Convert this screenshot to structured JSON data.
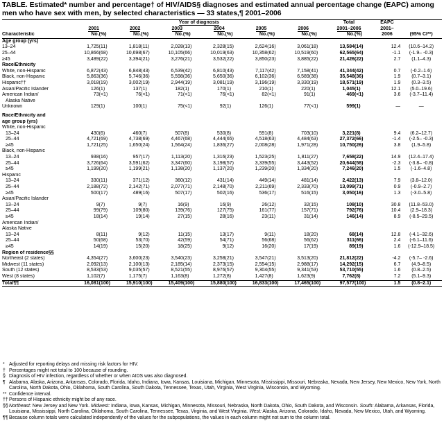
{
  "title": "TABLE. Estimated* number and percentage† of HIV/AIDS§ diagnoses and estimated annual percentage change (EAPC) among men who have sex with men, by selected characteristics — 33 states,¶ 2001–2006",
  "header": {
    "year_of_diagnosis": "Year of diagnosis",
    "total": "Total",
    "eapc": "EAPC",
    "years": [
      "2001",
      "2002",
      "2003",
      "2004",
      "2005",
      "2006"
    ],
    "total_range": "2001–2006",
    "eapc_range": "2001–",
    "characteristic": "Characteristic",
    "no": "No.",
    "pct": "(%)",
    "eapc_year": "2006",
    "ci": "(95% CI**)"
  },
  "rows": [
    {
      "type": "section",
      "label": "Age group (yrs)"
    },
    {
      "type": "data",
      "label": "13–24",
      "indent": 0,
      "cells": [
        "1,725",
        "(11)",
        "1,818",
        "(11)",
        "2,028",
        "(13)",
        "2,328",
        "(15)",
        "2,624",
        "(16)",
        "3,061",
        "(18)",
        "13,584",
        "(14)",
        "12.4",
        "(10.6–14.2)"
      ]
    },
    {
      "type": "data",
      "label": "25–44",
      "indent": 0,
      "cells": [
        "10,866",
        "(68)",
        "10,698",
        "(67)",
        "10,105",
        "(66)",
        "10,019",
        "(63)",
        "10,358",
        "(62)",
        "10,519",
        "(60)",
        "62,565",
        "(64)",
        "-1.1",
        "(-1.9– -0.3)"
      ]
    },
    {
      "type": "data",
      "label": "≥45",
      "indent": 0,
      "cells": [
        "3,489",
        "(22)",
        "3,394",
        "(21)",
        "3,276",
        "(21)",
        "3,532",
        "(22)",
        "3,850",
        "(23)",
        "3,885",
        "(22)",
        "21,426",
        "(22)",
        "2.7",
        "(1.1–4.3)"
      ]
    },
    {
      "type": "section",
      "label": "Race/Ethnicity"
    },
    {
      "type": "data",
      "label": "White, non-Hispanic",
      "indent": 0,
      "cells": [
        "6,872",
        "(43)",
        "6,848",
        "(43)",
        "6,539",
        "(42)",
        "6,810",
        "(43)",
        "7,117",
        "(42)",
        "7,158",
        "(41)",
        "41,344",
        "(42)",
        "0.7",
        "(-0.2–1.6)"
      ]
    },
    {
      "type": "data",
      "label": "Black, non-Hispanic",
      "indent": 0,
      "cells": [
        "5,863",
        "(36)",
        "5,746",
        "(36)",
        "5,598",
        "(36)",
        "5,650",
        "(36)",
        "6,102",
        "(36)",
        "6,589",
        "(38)",
        "35,548",
        "(36)",
        "1.9",
        "(0.7–3.1)"
      ]
    },
    {
      "type": "data",
      "label": "Hispanic††",
      "indent": 0,
      "cells": [
        "3,018",
        "(19)",
        "3,002",
        "(19)",
        "2,944",
        "(19)",
        "3,081",
        "(19)",
        "3,196",
        "(19)",
        "3,330",
        "(19)",
        "18,571",
        "(19)",
        "1.9",
        "(0.3–3.5)"
      ]
    },
    {
      "type": "data",
      "label": "Asian/Pacific Islander",
      "indent": 0,
      "cells": [
        "126",
        "(1)",
        "137",
        "(1)",
        "182",
        "(1)",
        "170",
        "(1)",
        "210",
        "(1)",
        "220",
        "(1)",
        "1,045",
        "(1)",
        "12.1",
        "(5.0–19.6)"
      ]
    },
    {
      "type": "data",
      "label": "American Indian/",
      "indent": 0,
      "cells": [
        "73",
        "(<1)",
        "76",
        "(<1)",
        "71",
        "(<1)",
        "76",
        "(<1)",
        "82",
        "(<1)",
        "91",
        "(1)",
        "469",
        "(<1)",
        "3.6",
        "(-3.7–11.4)"
      ]
    },
    {
      "type": "label",
      "label": "Alaska Native",
      "indent": 1
    },
    {
      "type": "data",
      "label": "Unknown",
      "indent": 0,
      "cells": [
        "129",
        "(1)",
        "100",
        "(1)",
        "75",
        "(<1)",
        "92",
        "(1)",
        "126",
        "(1)",
        "77",
        "(<1)",
        "599",
        "(1)",
        "—",
        "—"
      ]
    },
    {
      "type": "spacer"
    },
    {
      "type": "section",
      "label": "Race/Ethnicity and"
    },
    {
      "type": "section",
      "label": "age group (yrs)"
    },
    {
      "type": "label",
      "label": "White, non-Hispanic",
      "indent": 0
    },
    {
      "type": "data",
      "label": "13–24",
      "indent": 1,
      "cells": [
        "430",
        "(6)",
        "460",
        "(7)",
        "507",
        "(8)",
        "530",
        "(8)",
        "591",
        "(8)",
        "703",
        "(10)",
        "3,221",
        "(8)",
        "9.4",
        "(6.2–12.7)"
      ]
    },
    {
      "type": "data",
      "label": "25–44",
      "indent": 1,
      "cells": [
        "4,721",
        "(69)",
        "4,738",
        "(69)",
        "4,467",
        "(68)",
        "4,444",
        "(65)",
        "4,518",
        "(63)",
        "4,484",
        "(63)",
        "27,372",
        "(66)",
        "-1.4",
        "(-2.5– -0.3)"
      ]
    },
    {
      "type": "data",
      "label": "≥45",
      "indent": 1,
      "cells": [
        "1,721",
        "(25)",
        "1,650",
        "(24)",
        "1,564",
        "(24)",
        "1,836",
        "(27)",
        "2,008",
        "(28)",
        "1,971",
        "(28)",
        "10,750",
        "(26)",
        "3.8",
        "(1.9–5.8)"
      ]
    },
    {
      "type": "label",
      "label": "Black, non-Hispanic",
      "indent": 0
    },
    {
      "type": "data",
      "label": "13–24",
      "indent": 1,
      "cells": [
        "938",
        "(16)",
        "957",
        "(17)",
        "1,113",
        "(20)",
        "1,316",
        "(23)",
        "1,523",
        "(25)",
        "1,811",
        "(27)",
        "7,658",
        "(22)",
        "14.9",
        "(12.4–17.4)"
      ]
    },
    {
      "type": "data",
      "label": "25–44",
      "indent": 1,
      "cells": [
        "3,726",
        "(64)",
        "3,591",
        "(62)",
        "3,347",
        "(60)",
        "3,198",
        "(57)",
        "3,339",
        "(55)",
        "3,443",
        "(52)",
        "20,644",
        "(58)",
        "-2.3",
        "(-3.8– -0.8)"
      ]
    },
    {
      "type": "data",
      "label": "≥45",
      "indent": 1,
      "cells": [
        "1,199",
        "(20)",
        "1,199",
        "(21)",
        "1,138",
        "(20)",
        "1,137",
        "(20)",
        "1,239",
        "(20)",
        "1,334",
        "(20)",
        "7,246",
        "(20)",
        "1.5",
        "(-1.6–4.8)"
      ]
    },
    {
      "type": "label",
      "label": "Hispanic",
      "indent": 0
    },
    {
      "type": "data",
      "label": "13–24",
      "indent": 1,
      "cells": [
        "330",
        "(11)",
        "371",
        "(12)",
        "360",
        "(12)",
        "431",
        "(14)",
        "449",
        "(14)",
        "481",
        "(14)",
        "2,422",
        "(13)",
        "7.9",
        "(3.8–12.0)"
      ]
    },
    {
      "type": "data",
      "label": "25–44",
      "indent": 1,
      "cells": [
        "2,188",
        "(72)",
        "2,142",
        "(71)",
        "2,077",
        "(71)",
        "2,148",
        "(70)",
        "2,211",
        "(69)",
        "2,333",
        "(70)",
        "13,099",
        "(71)",
        "0.9",
        "(-0.9–2.7)"
      ]
    },
    {
      "type": "data",
      "label": "≥45",
      "indent": 1,
      "cells": [
        "500",
        "(17)",
        "489",
        "(16)",
        "507",
        "(17)",
        "502",
        "(16)",
        "536",
        "(17)",
        "516",
        "(15)",
        "3,050",
        "(16)",
        "1.3",
        "(-3.0–5.8)"
      ]
    },
    {
      "type": "label",
      "label": "Asian/Pacific Islander",
      "indent": 0
    },
    {
      "type": "data",
      "label": "13–24",
      "indent": 1,
      "cells": [
        "9",
        "(7)",
        "9",
        "(7)",
        "16",
        "(9)",
        "16",
        "(9)",
        "26",
        "(12)",
        "32",
        "(15)",
        "108",
        "(10)",
        "30.8",
        "(11.8–53.0)"
      ]
    },
    {
      "type": "data",
      "label": "25–44",
      "indent": 1,
      "cells": [
        "99",
        "(79)",
        "109",
        "(80)",
        "139",
        "(76)",
        "127",
        "(75)",
        "161",
        "(77)",
        "157",
        "(71)",
        "792",
        "(76)",
        "10.4",
        "(2.9–18.3)"
      ]
    },
    {
      "type": "data",
      "label": "≥45",
      "indent": 1,
      "cells": [
        "18",
        "(14)",
        "19",
        "(14)",
        "27",
        "(15)",
        "28",
        "(16)",
        "23",
        "(11)",
        "31",
        "(14)",
        "146",
        "(14)",
        "8.9",
        "(-8.5–29.5)"
      ]
    },
    {
      "type": "label",
      "label": "American Indian/",
      "indent": 0
    },
    {
      "type": "label",
      "label": "Alaska Native",
      "indent": 0
    },
    {
      "type": "data",
      "label": "13–24",
      "indent": 1,
      "cells": [
        "8",
        "(11)",
        "9",
        "(12)",
        "11",
        "(15)",
        "13",
        "(17)",
        "9",
        "(11)",
        "18",
        "(20)",
        "68",
        "(14)",
        "12.8",
        "(-4.1–32.6)"
      ]
    },
    {
      "type": "data",
      "label": "25–44",
      "indent": 1,
      "cells": [
        "50",
        "(68)",
        "53",
        "(70)",
        "42",
        "(59)",
        "54",
        "(71)",
        "56",
        "(68)",
        "56",
        "(62)",
        "311",
        "(66)",
        "2.4",
        "(-6.1–11.6)"
      ]
    },
    {
      "type": "data",
      "label": "≥45",
      "indent": 1,
      "cells": [
        "14",
        "(19)",
        "15",
        "(20)",
        "18",
        "(25)",
        "9",
        "(12)",
        "16",
        "(20)",
        "17",
        "(19)",
        "89",
        "(19)",
        "1.6",
        "(-12.9–18.5)"
      ]
    },
    {
      "type": "section",
      "label": "Region of residence§§"
    },
    {
      "type": "data",
      "label": "Northeast (2 states)",
      "indent": 0,
      "cells": [
        "4,354",
        "(27)",
        "3,600",
        "(23)",
        "3,540",
        "(23)",
        "3,258",
        "(21)",
        "3,547",
        "(21)",
        "3,513",
        "(20)",
        "21,812",
        "(22)",
        "-4.2",
        "(-5.7– -2.6)"
      ]
    },
    {
      "type": "data",
      "label": "Midwest (11 states)",
      "indent": 0,
      "cells": [
        "2,092",
        "(13)",
        "2,100",
        "(13)",
        "2,185",
        "(14)",
        "2,373",
        "(15)",
        "2,554",
        "(15)",
        "2,988",
        "(17)",
        "14,292",
        "(15)",
        "6.7",
        "(4.9–8.5)"
      ]
    },
    {
      "type": "data",
      "label": "South (12 states)",
      "indent": 0,
      "cells": [
        "8,533",
        "(53)",
        "9,035",
        "(57)",
        "8,521",
        "(55)",
        "8,976",
        "(57)",
        "9,304",
        "(55)",
        "9,341",
        "(53)",
        "53,710",
        "(55)",
        "1.6",
        "(0.8–2.5)"
      ]
    },
    {
      "type": "data",
      "label": "West (8 states)",
      "indent": 0,
      "cells": [
        "1,102",
        "(7)",
        "1,175",
        "(7)",
        "1,163",
        "(8)",
        "1,272",
        "(8)",
        "1,427",
        "(8)",
        "1,623",
        "(9)",
        "7,762",
        "(8)",
        "7.2",
        "(5.1–9.3)"
      ]
    },
    {
      "type": "total",
      "label": "Total¶¶",
      "indent": 0,
      "cells": [
        "16,081",
        "(100)",
        "15,910",
        "(100)",
        "15,409",
        "(100)",
        "15,880",
        "(100)",
        "16,833",
        "(100)",
        "17,465",
        "(100)",
        "97,577",
        "(100)",
        "1.5",
        "(0.8–2.1)"
      ]
    }
  ],
  "footnotes": [
    {
      "sym": "*",
      "text": "Adjusted for reporting delays and missing risk factors for HIV."
    },
    {
      "sym": "†",
      "text": "Percentages might not total to 100 because of rounding."
    },
    {
      "sym": "§",
      "text": "Diagnosis of HIV infection, regardless of whether or when AIDS was also diagnosed."
    },
    {
      "sym": "¶",
      "text": "Alabama, Alaska, Arizona, Arkansas, Colorado, Florida, Idaho, Indiana, Iowa, Kansas, Louisiana, Michigan, Minnesota, Mississippi, Missouri, Nebraska, Nevada, New Jersey, New Mexico, New York, North Carolina, North Dakota, Ohio, Oklahoma, South Carolina, South Dakota, Tennessee, Texas, Utah, Virginia, West Virginia, Wisconsin, and Wyoming."
    },
    {
      "sym": "**",
      "text": "Confidence interval."
    },
    {
      "sym": "††",
      "text": "Persons of Hispanic ethnicity might be of any race."
    },
    {
      "sym": "§§",
      "italic_lead": "Northeast:",
      "text": " New Jersey and New York. ",
      "parts": [
        {
          "i": "Midwest:"
        },
        {
          "t": " Indiana, Iowa, Kansas, Michigan, Minnesota, Missouri, Nebraska, North Dakota, Ohio, South Dakota, and Wisconsin. "
        },
        {
          "i": "South:"
        },
        {
          "t": " Alabama, Arkansas, Florida, Louisiana, Mississippi, North Carolina, Oklahoma, South Carolina, Tennessee, Texas, Virginia, and West Virginia. "
        },
        {
          "i": "West:"
        },
        {
          "t": " Alaska, Arizona, Colorado, Idaho, Nevada, New Mexico, Utah, and Wyoming."
        }
      ]
    },
    {
      "sym": "¶¶",
      "text": "Because column totals were calculated independently of the values for the subpopulations, the values in each column might not sum to the column total."
    }
  ]
}
